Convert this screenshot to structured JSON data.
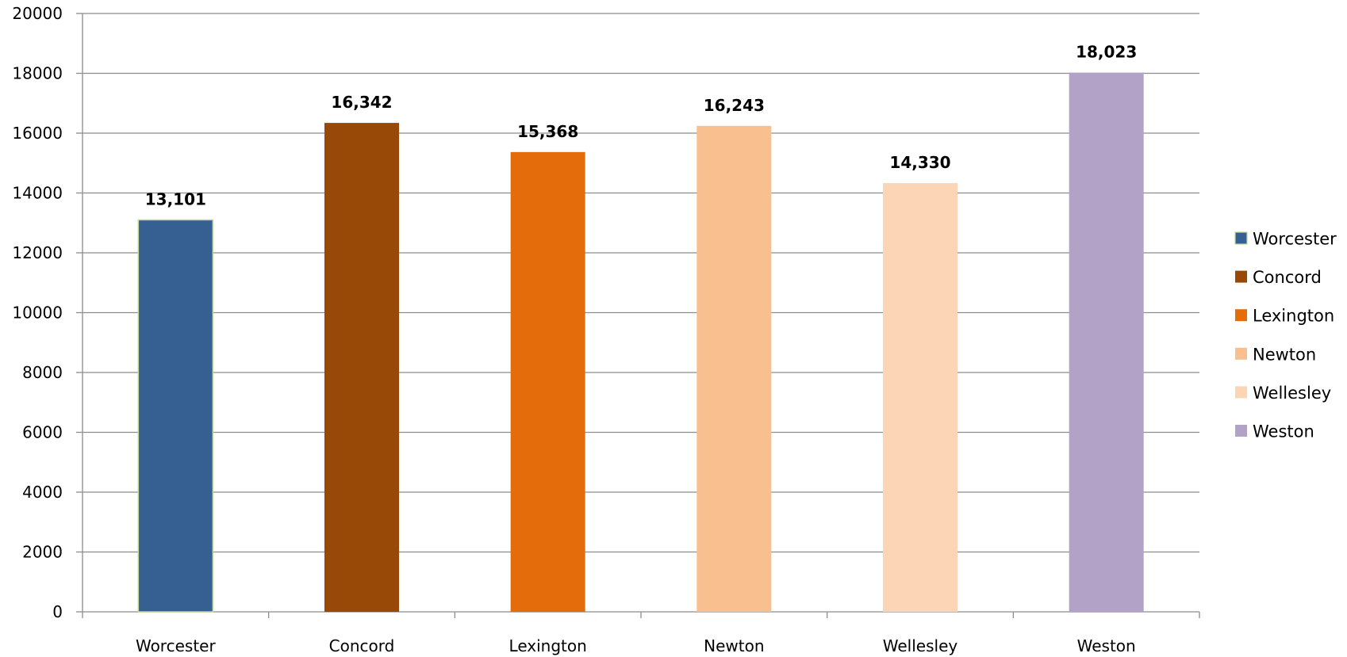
{
  "chart_data": {
    "type": "bar",
    "title": "",
    "xlabel": "",
    "ylabel": "",
    "categories": [
      "Worcester",
      "Concord",
      "Lexington",
      "Newton",
      "Wellesley",
      "Weston"
    ],
    "values": [
      13101,
      16342,
      15368,
      16243,
      14330,
      18023
    ],
    "value_labels": [
      "13,101",
      "16,342",
      "15,368",
      "16,243",
      "14,330",
      "18,023"
    ],
    "colors": [
      "#376092",
      "#984807",
      "#E46C0A",
      "#F9BF8F",
      "#FBD5B5",
      "#B3A2C7"
    ],
    "ylim": [
      0,
      20000
    ],
    "yticks": [
      "0",
      "2000",
      "4000",
      "6000",
      "8000",
      "10000",
      "12000",
      "14000",
      "16000",
      "18000",
      "20000"
    ],
    "grid": true,
    "legend": {
      "position": "right",
      "entries": [
        "Worcester",
        "Concord",
        "Lexington",
        "Newton",
        "Wellesley",
        "Weston"
      ]
    }
  }
}
